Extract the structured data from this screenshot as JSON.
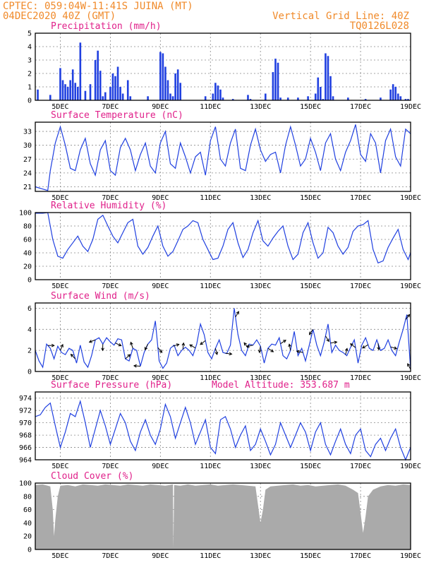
{
  "header": {
    "line1_left": "CPTEC:   059:04W-11:41S  JUINA (MT)",
    "line2_left": "04DEC2020 40Z (GMT)",
    "line1_right": "Vertical Grid Line: 40Z",
    "line2_right": "TQ0126L028"
  },
  "x_ticks": [
    "5DEC",
    "7DEC",
    "9DEC",
    "11DEC",
    "13DEC",
    "15DEC",
    "17DEC",
    "19DEC"
  ],
  "colors": {
    "line": "#2040e0",
    "cloud": "#aaaaaa",
    "title": "#e0208a",
    "header": "#f08a2a"
  },
  "chart_data": [
    {
      "type": "bar",
      "title": "Precipitation (mm/h)",
      "ylim": [
        0,
        5
      ],
      "yticks": [
        0,
        1,
        2,
        3,
        4,
        5
      ],
      "x_range_days": [
        4.0,
        19.0
      ],
      "x": [
        4.1,
        4.6,
        5.0,
        5.1,
        5.2,
        5.3,
        5.4,
        5.5,
        5.6,
        5.7,
        5.8,
        6.0,
        6.2,
        6.4,
        6.5,
        6.6,
        6.7,
        6.8,
        7.0,
        7.1,
        7.2,
        7.3,
        7.4,
        7.5,
        7.7,
        7.8,
        8.5,
        9.0,
        9.1,
        9.2,
        9.3,
        9.4,
        9.5,
        9.6,
        9.7,
        9.8,
        10.8,
        11.1,
        11.2,
        11.3,
        11.4,
        11.5,
        11.9,
        12.5,
        12.6,
        13.2,
        13.5,
        13.6,
        13.7,
        13.8,
        14.1,
        14.5,
        14.9,
        15.2,
        15.3,
        15.4,
        15.5,
        15.6,
        15.7,
        15.8,
        15.9,
        16.5,
        17.2,
        17.8,
        18.2,
        18.3,
        18.4,
        18.5,
        18.6,
        18.8,
        18.9
      ],
      "values": [
        0.8,
        0.4,
        2.4,
        1.5,
        1.2,
        1.0,
        1.5,
        2.3,
        1.3,
        1.0,
        4.3,
        0.7,
        1.2,
        3.0,
        3.7,
        2.2,
        0.3,
        0.6,
        1.0,
        2.0,
        1.8,
        2.5,
        1.0,
        0.5,
        1.5,
        0.3,
        0.3,
        3.6,
        3.5,
        2.5,
        1.5,
        0.5,
        0.3,
        2.0,
        2.3,
        1.3,
        0.3,
        0.5,
        1.3,
        1.1,
        0.8,
        0.2,
        0.1,
        0.4,
        0.1,
        0.5,
        2.1,
        3.1,
        2.8,
        0.2,
        0.2,
        0.2,
        0.3,
        0.5,
        1.7,
        1.0,
        0.1,
        3.5,
        3.3,
        1.8,
        0.3,
        0.2,
        0.1,
        0.2,
        0.8,
        1.2,
        1.0,
        0.5,
        0.3,
        0.1,
        0.1
      ]
    },
    {
      "type": "line",
      "title": "Surface Temperature (nC)",
      "ylim": [
        20,
        35
      ],
      "yticks": [
        21,
        24,
        27,
        30,
        33
      ],
      "x_range_days": [
        4.0,
        19.0
      ],
      "x": [
        4.0,
        4.3,
        4.5,
        4.6,
        4.8,
        5.0,
        5.2,
        5.4,
        5.6,
        5.8,
        6.0,
        6.2,
        6.4,
        6.6,
        6.8,
        7.0,
        7.2,
        7.4,
        7.6,
        7.8,
        8.0,
        8.2,
        8.4,
        8.6,
        8.8,
        9.0,
        9.2,
        9.4,
        9.6,
        9.8,
        10.0,
        10.2,
        10.4,
        10.6,
        10.8,
        11.0,
        11.2,
        11.4,
        11.6,
        11.8,
        12.0,
        12.2,
        12.4,
        12.6,
        12.8,
        13.0,
        13.2,
        13.4,
        13.6,
        13.8,
        14.0,
        14.2,
        14.4,
        14.6,
        14.8,
        15.0,
        15.2,
        15.4,
        15.6,
        15.8,
        16.0,
        16.2,
        16.4,
        16.6,
        16.8,
        17.0,
        17.2,
        17.4,
        17.6,
        17.8,
        18.0,
        18.2,
        18.4,
        18.6,
        18.8,
        19.0
      ],
      "values": [
        21.0,
        20.5,
        20.2,
        24.5,
        30.5,
        34.0,
        30.0,
        25.0,
        24.5,
        29.0,
        31.5,
        26.0,
        23.5,
        29.0,
        31.0,
        24.5,
        23.5,
        29.5,
        31.5,
        29.0,
        24.5,
        28.0,
        30.5,
        25.5,
        24.0,
        30.5,
        33.0,
        26.0,
        25.0,
        30.5,
        27.5,
        24.0,
        27.5,
        28.5,
        23.5,
        31.0,
        34.0,
        27.0,
        25.5,
        30.5,
        33.5,
        25.0,
        24.5,
        30.0,
        33.5,
        29.0,
        26.5,
        28.0,
        28.5,
        24.0,
        30.0,
        34.0,
        30.0,
        25.5,
        27.0,
        31.5,
        28.5,
        24.5,
        30.5,
        32.5,
        27.0,
        24.5,
        28.5,
        31.0,
        34.5,
        28.0,
        26.5,
        32.5,
        30.5,
        24.0,
        31.0,
        33.5,
        27.5,
        25.5,
        33.5,
        32.5
      ]
    },
    {
      "type": "line",
      "title": "Relative Humidity (%)",
      "ylim": [
        0,
        100
      ],
      "yticks": [
        0,
        20,
        40,
        60,
        80,
        100
      ],
      "x_range_days": [
        4.0,
        19.0
      ],
      "x": [
        4.0,
        4.3,
        4.5,
        4.7,
        4.9,
        5.1,
        5.3,
        5.5,
        5.7,
        5.9,
        6.1,
        6.3,
        6.5,
        6.7,
        6.9,
        7.1,
        7.3,
        7.5,
        7.7,
        7.9,
        8.1,
        8.3,
        8.5,
        8.7,
        8.9,
        9.1,
        9.3,
        9.5,
        9.7,
        9.9,
        10.1,
        10.3,
        10.5,
        10.7,
        10.9,
        11.1,
        11.3,
        11.5,
        11.7,
        11.9,
        12.1,
        12.3,
        12.5,
        12.7,
        12.9,
        13.1,
        13.3,
        13.5,
        13.7,
        13.9,
        14.1,
        14.3,
        14.5,
        14.7,
        14.9,
        15.1,
        15.3,
        15.5,
        15.7,
        15.9,
        16.1,
        16.3,
        16.5,
        16.7,
        16.9,
        17.1,
        17.3,
        17.5,
        17.7,
        17.9,
        18.1,
        18.3,
        18.5,
        18.7,
        18.9,
        19.0
      ],
      "values": [
        99,
        99,
        100,
        60,
        35,
        32,
        45,
        55,
        65,
        50,
        42,
        60,
        90,
        96,
        80,
        65,
        55,
        70,
        85,
        90,
        50,
        38,
        48,
        65,
        80,
        50,
        35,
        42,
        58,
        75,
        80,
        88,
        85,
        60,
        45,
        30,
        32,
        50,
        75,
        85,
        55,
        33,
        45,
        70,
        88,
        58,
        50,
        62,
        72,
        80,
        50,
        30,
        38,
        70,
        85,
        55,
        32,
        40,
        78,
        70,
        50,
        38,
        48,
        72,
        80,
        82,
        88,
        45,
        25,
        28,
        48,
        62,
        75,
        45,
        30,
        40
      ]
    },
    {
      "type": "line",
      "title": "Surface Wind (m/s)",
      "ylim": [
        0,
        6.5
      ],
      "yticks": [
        0,
        2,
        4,
        6
      ],
      "x_range_days": [
        4.0,
        19.0
      ],
      "arrows_x": [
        4.5,
        5.0,
        5.6,
        6.4,
        6.7,
        7.2,
        7.6,
        7.9,
        8.2,
        8.5,
        8.9,
        9.5,
        9.9,
        10.4,
        10.8,
        11.2,
        11.6,
        12.0,
        12.5,
        12.7,
        13.0,
        13.3,
        13.8,
        14.2,
        14.7,
        15.1,
        15.6,
        15.8,
        16.4,
        16.8,
        17.3,
        17.7,
        18.2,
        18.8,
        19.0
      ],
      "x": [
        4.0,
        4.15,
        4.3,
        4.45,
        4.6,
        4.75,
        4.9,
        5.05,
        5.2,
        5.35,
        5.5,
        5.65,
        5.8,
        5.95,
        6.1,
        6.25,
        6.4,
        6.55,
        6.7,
        6.85,
        7.0,
        7.15,
        7.3,
        7.45,
        7.6,
        7.75,
        7.9,
        8.05,
        8.2,
        8.35,
        8.5,
        8.65,
        8.8,
        8.95,
        9.1,
        9.25,
        9.4,
        9.55,
        9.7,
        9.85,
        10.0,
        10.15,
        10.3,
        10.45,
        10.6,
        10.75,
        10.9,
        11.05,
        11.2,
        11.35,
        11.5,
        11.65,
        11.8,
        11.95,
        12.1,
        12.25,
        12.4,
        12.55,
        12.7,
        12.85,
        13.0,
        13.15,
        13.3,
        13.45,
        13.6,
        13.75,
        13.9,
        14.05,
        14.2,
        14.35,
        14.5,
        14.65,
        14.8,
        14.95,
        15.1,
        15.25,
        15.4,
        15.55,
        15.7,
        15.85,
        16.0,
        16.15,
        16.3,
        16.45,
        16.6,
        16.75,
        16.9,
        17.05,
        17.2,
        17.35,
        17.5,
        17.65,
        17.8,
        17.95,
        18.1,
        18.25,
        18.4,
        18.55,
        18.7,
        18.85,
        19.0
      ],
      "values": [
        2.0,
        1.0,
        0.4,
        2.6,
        2.2,
        1.2,
        2.4,
        1.8,
        1.6,
        2.2,
        2.0,
        0.8,
        2.5,
        0.9,
        0.4,
        1.5,
        3.0,
        3.2,
        2.6,
        3.2,
        2.8,
        2.5,
        3.1,
        3.0,
        1.2,
        1.0,
        2.2,
        2.0,
        0.5,
        1.8,
        2.6,
        3.0,
        4.8,
        1.0,
        0.3,
        0.8,
        2.2,
        2.5,
        1.5,
        2.0,
        2.3,
        2.0,
        1.5,
        2.6,
        4.5,
        3.5,
        1.8,
        1.2,
        2.2,
        3.0,
        1.8,
        1.7,
        2.5,
        6.0,
        3.5,
        2.0,
        1.5,
        2.6,
        2.5,
        3.0,
        2.4,
        0.8,
        2.2,
        2.6,
        2.5,
        3.2,
        1.5,
        1.2,
        2.0,
        3.8,
        1.5,
        2.2,
        1.0,
        2.5,
        4.0,
        2.5,
        1.5,
        2.8,
        4.5,
        1.8,
        2.5,
        2.0,
        1.8,
        1.5,
        2.3,
        3.0,
        0.8,
        2.5,
        3.2,
        2.2,
        2.0,
        3.0,
        2.0,
        2.2,
        3.0,
        2.0,
        1.5,
        2.8,
        4.0,
        5.4,
        0.2
      ]
    },
    {
      "type": "line",
      "title": "Surface Pressure (hPa)",
      "annotation": "Model Altitude: 353.687 m",
      "ylim": [
        964,
        975
      ],
      "yticks": [
        964,
        966,
        968,
        970,
        972,
        974
      ],
      "x_range_days": [
        4.0,
        19.0
      ],
      "x": [
        4.0,
        4.2,
        4.4,
        4.6,
        4.8,
        5.0,
        5.2,
        5.4,
        5.6,
        5.8,
        6.0,
        6.2,
        6.4,
        6.6,
        6.8,
        7.0,
        7.2,
        7.4,
        7.6,
        7.8,
        8.0,
        8.2,
        8.4,
        8.6,
        8.8,
        9.0,
        9.2,
        9.4,
        9.6,
        9.8,
        10.0,
        10.2,
        10.4,
        10.6,
        10.8,
        11.0,
        11.2,
        11.4,
        11.6,
        11.8,
        12.0,
        12.2,
        12.4,
        12.6,
        12.8,
        13.0,
        13.2,
        13.4,
        13.6,
        13.8,
        14.0,
        14.2,
        14.4,
        14.6,
        14.8,
        15.0,
        15.2,
        15.4,
        15.6,
        15.8,
        16.0,
        16.2,
        16.4,
        16.6,
        16.8,
        17.0,
        17.2,
        17.4,
        17.6,
        17.8,
        18.0,
        18.2,
        18.4,
        18.6,
        18.8,
        19.0
      ],
      "values": [
        971.0,
        971.3,
        972.5,
        973.2,
        969.5,
        966.0,
        968.5,
        971.5,
        971.0,
        973.5,
        970.0,
        966.0,
        969.0,
        972.0,
        969.5,
        966.5,
        969.0,
        971.5,
        970.0,
        967.0,
        965.5,
        968.5,
        970.5,
        968.0,
        966.5,
        969.0,
        973.0,
        971.0,
        967.5,
        970.0,
        972.5,
        970.0,
        966.5,
        968.5,
        970.5,
        966.0,
        965.0,
        970.5,
        971.0,
        969.0,
        966.0,
        968.0,
        969.5,
        965.5,
        966.5,
        969.0,
        967.0,
        964.8,
        966.5,
        970.0,
        968.0,
        966.0,
        968.0,
        970.0,
        968.5,
        965.5,
        968.5,
        970.0,
        966.5,
        964.8,
        967.0,
        969.0,
        966.5,
        965.0,
        968.0,
        969.0,
        965.5,
        964.5,
        966.5,
        967.5,
        965.5,
        967.5,
        969.0,
        966.0,
        964.0,
        966.0
      ]
    },
    {
      "type": "area",
      "title": "Cloud Cover (%)",
      "ylim": [
        0,
        100
      ],
      "yticks": [
        0,
        20,
        40,
        60,
        80,
        100
      ],
      "x_range_days": [
        4.0,
        19.0
      ],
      "x": [
        4.0,
        4.3,
        4.6,
        4.7,
        4.75,
        4.8,
        4.9,
        5.0,
        5.3,
        5.6,
        5.9,
        6.2,
        6.5,
        6.8,
        7.1,
        7.4,
        7.7,
        8.0,
        8.3,
        8.6,
        8.9,
        9.2,
        9.5,
        9.52,
        9.55,
        9.8,
        10.1,
        10.4,
        10.7,
        11.0,
        11.3,
        11.6,
        11.9,
        12.2,
        12.5,
        12.8,
        13.0,
        13.1,
        13.2,
        13.4,
        13.7,
        14.0,
        14.3,
        14.6,
        14.9,
        15.2,
        15.5,
        15.8,
        16.1,
        16.4,
        16.7,
        16.9,
        17.0,
        17.1,
        17.2,
        17.3,
        17.5,
        17.8,
        18.1,
        18.4,
        18.7,
        19.0
      ],
      "values": [
        97,
        98,
        95,
        60,
        20,
        45,
        80,
        96,
        97,
        95,
        98,
        97,
        96,
        98,
        97,
        96,
        98,
        97,
        96,
        98,
        97,
        96,
        98,
        2,
        97,
        96,
        98,
        96,
        97,
        98,
        96,
        97,
        98,
        97,
        96,
        95,
        40,
        60,
        90,
        95,
        96,
        97,
        98,
        96,
        97,
        95,
        96,
        97,
        98,
        96,
        90,
        85,
        55,
        25,
        50,
        80,
        90,
        95,
        97,
        96,
        98,
        97
      ]
    }
  ]
}
